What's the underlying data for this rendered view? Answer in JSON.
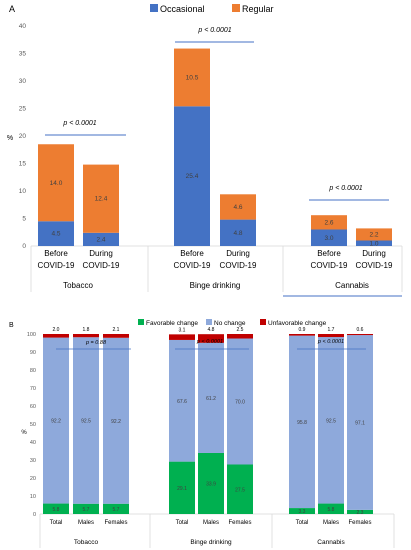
{
  "colors": {
    "occasional": "#4472C4",
    "regular": "#ED7D31",
    "favorable": "#00B050",
    "no_change": "#8EA9DB",
    "unfavorable": "#C00000",
    "pvalue_line": "#4472C4",
    "axis_text": "#595959",
    "gridline": "#D9D9D9"
  },
  "chart_data": [
    {
      "type": "bar",
      "stacked": true,
      "panel_label": "A",
      "legend": {
        "position": "top-center"
      },
      "ylabel": "%",
      "ylim": [
        0,
        40
      ],
      "yticks": [
        0,
        5,
        10,
        15,
        20,
        25,
        30,
        35,
        40
      ],
      "grid": false,
      "series": [
        {
          "name": "Occasional",
          "values": [
            4.5,
            2.4,
            25.4,
            4.8,
            3.0,
            1.0
          ]
        },
        {
          "name": "Regular",
          "values": [
            14.0,
            12.4,
            10.5,
            4.6,
            2.6,
            2.2
          ]
        }
      ],
      "labels": {
        "Occasional": [
          "4.5",
          "2.4",
          "25.4",
          "4.8",
          "3.0",
          "1.0"
        ],
        "Regular": [
          "14.0",
          "12.4",
          "10.5",
          "4.6",
          "2.6",
          "2.2"
        ]
      },
      "bar_labels": [
        [
          "Before",
          "COVID-19"
        ],
        [
          "During",
          "COVID-19"
        ],
        [
          "Before",
          "COVID-19"
        ],
        [
          "During",
          "COVID-19"
        ],
        [
          "Before",
          "COVID-19"
        ],
        [
          "During",
          "COVID-19"
        ]
      ],
      "groups": [
        "Tobacco",
        "Binge drinking",
        "Cannabis"
      ],
      "pvalues": [
        "p < 0.0001",
        "p < 0.0001",
        "p < 0.0001"
      ]
    },
    {
      "type": "bar",
      "stacked": true,
      "panel_label": "B",
      "legend": {
        "position": "top-center"
      },
      "ylabel": "%",
      "ylim": [
        0,
        100
      ],
      "yticks": [
        0,
        10,
        20,
        30,
        40,
        50,
        60,
        70,
        80,
        90,
        100
      ],
      "grid": false,
      "series": [
        {
          "name": "Favorable change",
          "values": [
            5.8,
            5.7,
            5.7,
            29.1,
            33.9,
            27.5,
            3.3,
            5.8,
            2.3
          ]
        },
        {
          "name": "No change",
          "values": [
            92.2,
            92.5,
            92.2,
            67.6,
            61.2,
            70.0,
            95.8,
            92.5,
            97.1
          ]
        },
        {
          "name": "Unfavorable change",
          "values": [
            2.0,
            1.8,
            2.1,
            3.1,
            4.8,
            2.5,
            0.9,
            1.7,
            0.6
          ]
        }
      ],
      "labels": {
        "Favorable change": [
          "5.8",
          "5.7",
          "5.7",
          "29.1",
          "33.9",
          "27.5",
          "3.3",
          "5.8",
          "2.3"
        ],
        "No change": [
          "92.2",
          "92.5",
          "92.2",
          "67.6",
          "61.2",
          "70.0",
          "95.8",
          "92.5",
          "97.1"
        ],
        "Unfavorable change": [
          "2.0",
          "1.8",
          "2.1",
          "3.1",
          "4.8",
          "2.5",
          "0.9",
          "1.7",
          "0.6"
        ]
      },
      "bar_labels": [
        "Total",
        "Males",
        "Females",
        "Total",
        "Males",
        "Females",
        "Total",
        "Males",
        "Females"
      ],
      "groups": [
        "Tobacco",
        "Binge drinking",
        "Cannabis"
      ],
      "pvalues": [
        "p = 0.88",
        "p < 0.0001",
        "p < 0.0001"
      ]
    }
  ]
}
